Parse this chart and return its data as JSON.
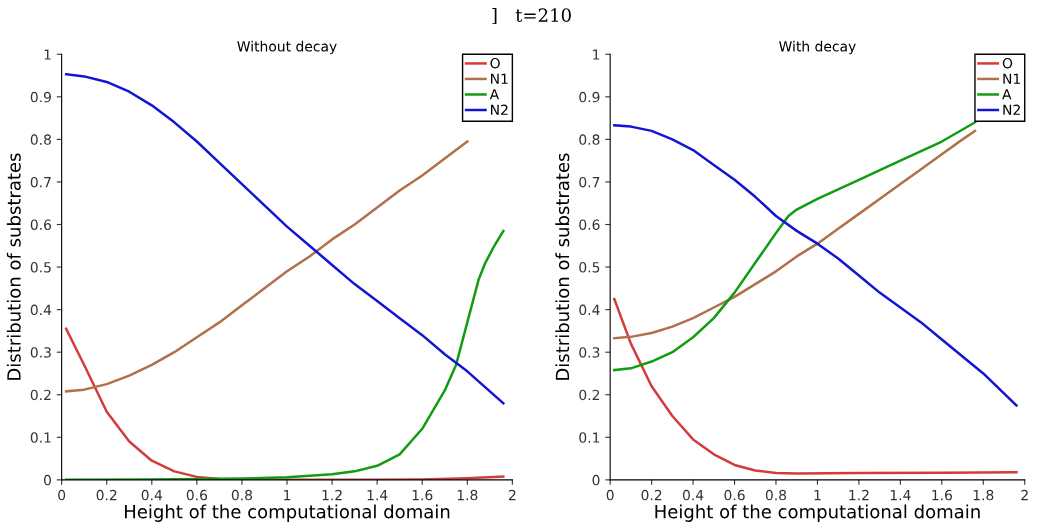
{
  "chart_data": [
    {
      "type": "line",
      "title": "Without decay",
      "xlabel": "Height of the computational domain",
      "ylabel": "Distribution of substrates",
      "annotations": [
        "]   t=210"
      ],
      "xlim": [
        0,
        2
      ],
      "ylim": [
        0,
        1
      ],
      "xticks": [
        0,
        0.2,
        0.4,
        0.6,
        0.8,
        1,
        1.2,
        1.4,
        1.6,
        1.8,
        2
      ],
      "yticks": [
        0,
        0.1,
        0.2,
        0.3,
        0.4,
        0.5,
        0.6,
        0.7,
        0.8,
        0.9,
        1
      ],
      "grid": false,
      "legend": "top right",
      "line_style": "solid",
      "marker": "none",
      "series": [
        {
          "name": "O",
          "color": "#d43c3c",
          "x": [
            0.02,
            0.1,
            0.2,
            0.3,
            0.4,
            0.5,
            0.6,
            0.7,
            0.8,
            1.0,
            1.4,
            1.6,
            1.8,
            1.96
          ],
          "values": [
            0.355,
            0.27,
            0.16,
            0.09,
            0.045,
            0.02,
            0.007,
            0.002,
            0.001,
            0,
            0,
            0.001,
            0.004,
            0.008
          ]
        },
        {
          "name": "N1",
          "color": "#b0704a",
          "x": [
            0.02,
            0.1,
            0.2,
            0.3,
            0.4,
            0.5,
            0.6,
            0.7,
            0.8,
            0.9,
            1.0,
            1.1,
            1.2,
            1.3,
            1.4,
            1.5,
            1.6,
            1.7,
            1.8
          ],
          "values": [
            0.208,
            0.212,
            0.225,
            0.245,
            0.27,
            0.3,
            0.335,
            0.37,
            0.41,
            0.45,
            0.49,
            0.525,
            0.565,
            0.6,
            0.64,
            0.68,
            0.715,
            0.755,
            0.795
          ]
        },
        {
          "name": "A",
          "color": "#119c11",
          "x": [
            0.02,
            0.4,
            0.8,
            1.0,
            1.2,
            1.3,
            1.4,
            1.5,
            1.6,
            1.7,
            1.75,
            1.8,
            1.85,
            1.88,
            1.92,
            1.96
          ],
          "values": [
            0,
            0.001,
            0.003,
            0.006,
            0.013,
            0.02,
            0.033,
            0.06,
            0.12,
            0.21,
            0.27,
            0.37,
            0.47,
            0.51,
            0.55,
            0.585
          ]
        },
        {
          "name": "N2",
          "color": "#1414d4",
          "x": [
            0.02,
            0.1,
            0.2,
            0.3,
            0.4,
            0.5,
            0.6,
            0.7,
            0.8,
            0.9,
            1.0,
            1.1,
            1.2,
            1.3,
            1.4,
            1.5,
            1.6,
            1.7,
            1.8,
            1.96
          ],
          "values": [
            0.953,
            0.948,
            0.935,
            0.912,
            0.88,
            0.84,
            0.795,
            0.745,
            0.695,
            0.645,
            0.595,
            0.55,
            0.505,
            0.46,
            0.42,
            0.38,
            0.34,
            0.295,
            0.255,
            0.18
          ]
        }
      ]
    },
    {
      "type": "line",
      "title": "With decay",
      "xlabel": "Height of the computational domain",
      "ylabel": "Distribution of substrates",
      "xlim": [
        0,
        2
      ],
      "ylim": [
        0,
        1
      ],
      "xticks": [
        0,
        0.2,
        0.4,
        0.6,
        0.8,
        1,
        1.2,
        1.4,
        1.6,
        1.8,
        2
      ],
      "yticks": [
        0,
        0.1,
        0.2,
        0.3,
        0.4,
        0.5,
        0.6,
        0.7,
        0.8,
        0.9,
        1
      ],
      "grid": false,
      "legend": "top right",
      "line_style": "solid",
      "marker": "none",
      "series": [
        {
          "name": "O",
          "color": "#d43c3c",
          "x": [
            0.02,
            0.1,
            0.2,
            0.3,
            0.4,
            0.5,
            0.6,
            0.7,
            0.8,
            0.9,
            1.2,
            1.6,
            1.96
          ],
          "values": [
            0.425,
            0.32,
            0.22,
            0.15,
            0.095,
            0.06,
            0.035,
            0.022,
            0.016,
            0.015,
            0.016,
            0.017,
            0.018
          ]
        },
        {
          "name": "N1",
          "color": "#b0704a",
          "x": [
            0.02,
            0.1,
            0.2,
            0.3,
            0.4,
            0.5,
            0.6,
            0.7,
            0.8,
            0.9,
            1.0,
            1.1,
            1.2,
            1.3,
            1.4,
            1.5,
            1.6,
            1.7,
            1.76
          ],
          "values": [
            0.333,
            0.336,
            0.345,
            0.36,
            0.38,
            0.405,
            0.43,
            0.46,
            0.49,
            0.525,
            0.555,
            0.59,
            0.625,
            0.66,
            0.695,
            0.73,
            0.765,
            0.8,
            0.82
          ]
        },
        {
          "name": "A",
          "color": "#119c11",
          "x": [
            0.02,
            0.1,
            0.2,
            0.3,
            0.4,
            0.5,
            0.6,
            0.7,
            0.8,
            0.86,
            0.9,
            1.0,
            1.2,
            1.4,
            1.6,
            1.76
          ],
          "values": [
            0.258,
            0.262,
            0.278,
            0.3,
            0.335,
            0.38,
            0.44,
            0.51,
            0.58,
            0.62,
            0.635,
            0.66,
            0.705,
            0.75,
            0.795,
            0.84
          ]
        },
        {
          "name": "N2",
          "color": "#1414d4",
          "x": [
            0.02,
            0.1,
            0.2,
            0.3,
            0.4,
            0.5,
            0.6,
            0.7,
            0.8,
            0.9,
            1.0,
            1.1,
            1.2,
            1.3,
            1.4,
            1.5,
            1.6,
            1.7,
            1.8,
            1.96
          ],
          "values": [
            0.833,
            0.83,
            0.82,
            0.8,
            0.775,
            0.74,
            0.705,
            0.665,
            0.62,
            0.585,
            0.555,
            0.52,
            0.48,
            0.44,
            0.405,
            0.37,
            0.33,
            0.29,
            0.25,
            0.175
          ]
        }
      ]
    }
  ]
}
